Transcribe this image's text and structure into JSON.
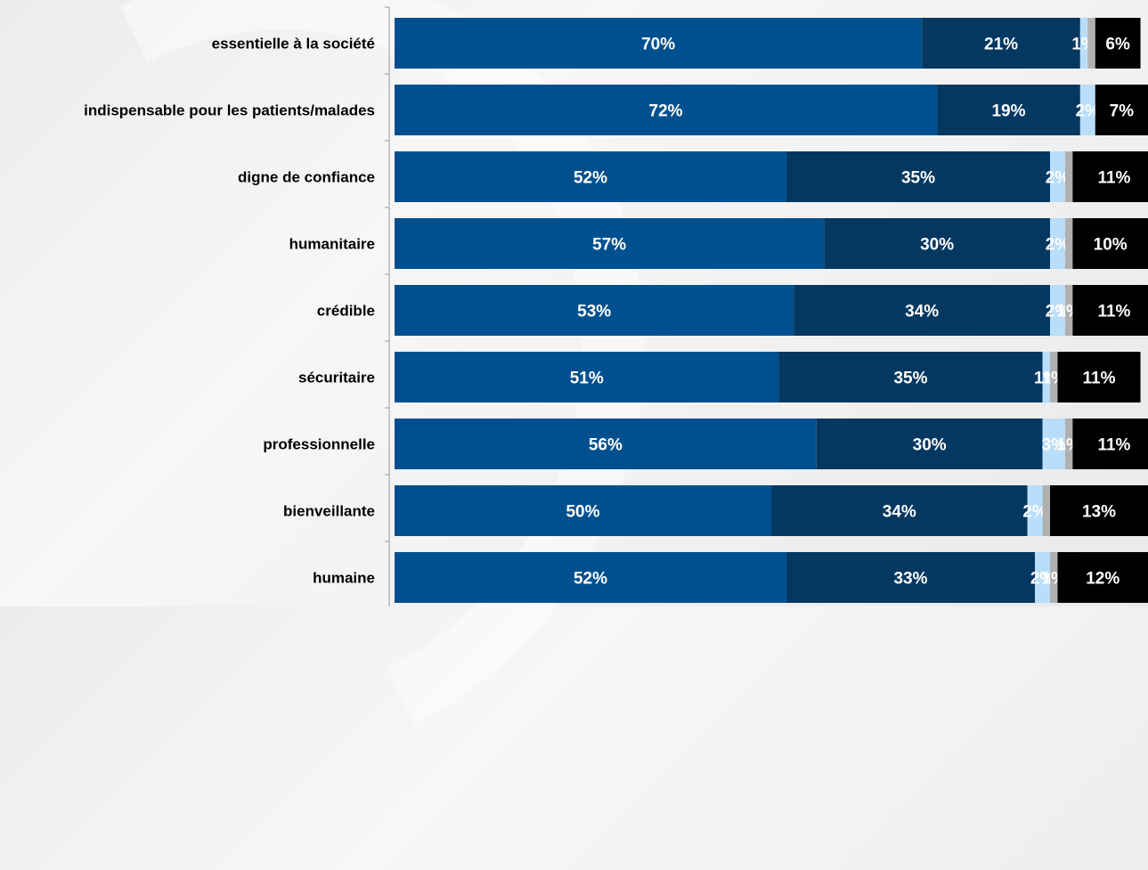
{
  "chart_data": {
    "type": "bar",
    "orientation": "horizontal",
    "stacked": true,
    "categories": [
      "essentielle à la société",
      "indispensable pour les patients/malades",
      "digne de confiance",
      "humanitaire",
      "crédible",
      "sécuritaire",
      "professionnelle",
      "bienveillante",
      "humaine"
    ],
    "series": [
      {
        "values": [
          70,
          72,
          52,
          57,
          53,
          51,
          56,
          50,
          52
        ],
        "color": "#00508f"
      },
      {
        "values": [
          21,
          19,
          35,
          30,
          34,
          35,
          30,
          34,
          33
        ],
        "color": "#053861"
      },
      {
        "values": [
          1,
          2,
          2,
          2,
          2,
          1,
          3,
          2,
          2
        ],
        "color": "#b8defa"
      },
      {
        "values": [
          1,
          0,
          1,
          1,
          1,
          1,
          1,
          1,
          1
        ],
        "color": "#b0b0b0"
      },
      {
        "values": [
          6,
          7,
          11,
          10,
          11,
          11,
          11,
          13,
          12
        ],
        "color": "#000000"
      }
    ],
    "data_labels": [
      [
        "70%",
        "21%",
        "1%",
        "",
        "6%"
      ],
      [
        "72%",
        "19%",
        "2%",
        "",
        "7%"
      ],
      [
        "52%",
        "35%",
        "2%",
        "",
        "11%"
      ],
      [
        "57%",
        "30%",
        "2%",
        "",
        "10%"
      ],
      [
        "53%",
        "34%",
        "2%",
        "1%",
        "11%"
      ],
      [
        "51%",
        "35%",
        "1%",
        "1%",
        "11%"
      ],
      [
        "56%",
        "30%",
        "3%",
        "1%",
        "11%"
      ],
      [
        "50%",
        "34%",
        "2%",
        "",
        "13%"
      ],
      [
        "52%",
        "33%",
        "2%",
        "1%",
        "12%"
      ]
    ],
    "xlim": [
      0,
      100
    ],
    "grid": false,
    "legend": "none"
  }
}
